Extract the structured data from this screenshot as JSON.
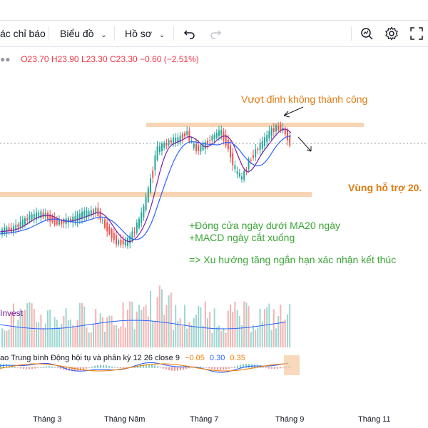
{
  "toolbar": {
    "indicators_label": "ác chỉ báo",
    "chart_type_label": "Biểu đồ",
    "profile_label": "Hồ sơ",
    "icons": [
      "undo-icon",
      "redo-icon",
      "search-chart-icon",
      "gear-icon",
      "fullscreen-icon"
    ]
  },
  "legend": {
    "open": "O23.70",
    "high": "H23.90",
    "low": "L23.30",
    "close": "C23.30",
    "change": "−0.60 (−2.51%)"
  },
  "annotations": {
    "breakout_failed": "Vượt đỉnh không thành công",
    "support_zone": "Vùng hỗ trợ 20.",
    "close_below_ma": "+Đóng cửa ngày dưới MA20 ngày",
    "macd_cross": "+MACD ngày cắt xuống",
    "conclusion": "=> Xu hướng tăng ngắn hạn xác nhận kết thúc"
  },
  "volume_pane": {
    "label": "Invest"
  },
  "macd_pane": {
    "title": "ao Trung bình Động hội tụ và phân kỳ 12 26 close 9",
    "v1": "−0.05",
    "v2": "0.30",
    "v3": "0.35"
  },
  "x_axis": {
    "ticks": [
      "Tháng 3",
      "Tháng Năm",
      "Tháng 7",
      "Tháng 9",
      "Tháng 11"
    ]
  },
  "colors": {
    "up": "#26a69a",
    "down": "#ef5350",
    "zone": "#f5c9a0",
    "annotation_orange": "#e07b12",
    "annotation_green": "#3aa535",
    "ma20": "#7b1fa2",
    "ma": "#2962ff"
  }
}
